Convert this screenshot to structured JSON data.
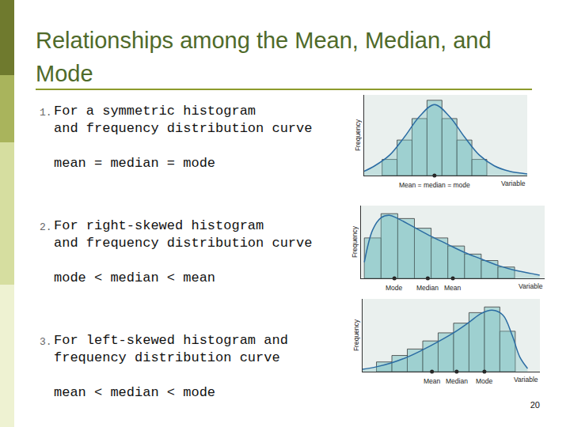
{
  "slide": {
    "title": "Relationships among the Mean, Median, and Mode",
    "items": [
      {
        "number": "1.",
        "text": [
          "For a symmetric histogram",
          "and frequency distribution curve"
        ],
        "relation": "mean = median = mode"
      },
      {
        "number": "2.",
        "text": [
          "For right-skewed histogram",
          "and frequency distribution curve"
        ],
        "relation": "mode < median < mean"
      },
      {
        "number": "3.",
        "text": [
          "For left-skewed histogram and",
          "frequency distribution curve"
        ],
        "relation": "mean < median < mode"
      }
    ],
    "page_number": 20
  },
  "chart_data": [
    {
      "type": "histogram",
      "xlabel": "Variable",
      "ylabel": "Frequency",
      "color": "#7fc4c4",
      "bins": [
        -3.5,
        -2.5,
        -1.5,
        -0.5,
        0.5,
        1.5,
        2.5,
        3.5
      ],
      "counts": [
        1.5,
        3.3,
        5.3,
        7,
        5.3,
        3.3,
        1.5
      ],
      "curve": {
        "x": [
          -4.7,
          -4,
          -3,
          -2,
          -1,
          0,
          1,
          2,
          3,
          4,
          5,
          6.2
        ],
        "y": [
          0.4,
          0.9,
          1.9,
          3.6,
          5.5,
          6.6,
          5.5,
          3.6,
          1.9,
          0.9,
          0.4,
          0.15
        ],
        "color": "#2b6ca3"
      },
      "markers": [
        {
          "label": "Mean = median = mode",
          "x": 0
        }
      ],
      "xlim": [
        -4.7,
        6.2
      ],
      "ylim": [
        0,
        7.5
      ],
      "tick_labels": false
    },
    {
      "type": "histogram",
      "xlabel": "Variable",
      "ylabel": "Frequency",
      "color": "#7fc4c4",
      "bins": [
        0,
        1,
        2,
        3,
        4,
        5,
        6,
        7,
        8,
        9
      ],
      "counts": [
        5,
        8,
        7.4,
        6.2,
        5,
        4,
        3,
        2.2,
        1.4
      ],
      "curve": {
        "x": [
          0,
          0.5,
          1,
          1.5,
          2,
          3,
          4,
          5,
          6,
          7,
          8,
          9,
          10,
          10.5
        ],
        "y": [
          2,
          6,
          7.5,
          7.8,
          7.4,
          6.3,
          5.2,
          4.2,
          3.2,
          2.4,
          1.6,
          1,
          0.6,
          0.4
        ],
        "color": "#2b6ca3"
      },
      "markers": [
        {
          "label": "Mode",
          "x": 1.8
        },
        {
          "label": "Median",
          "x": 3.8
        },
        {
          "label": "Mean",
          "x": 5.3
        }
      ],
      "xlim": [
        -0.2,
        10.8
      ],
      "ylim": [
        0,
        9
      ],
      "tick_labels": false
    },
    {
      "type": "histogram",
      "xlabel": "Variable",
      "ylabel": "Frequency",
      "color": "#7fc4c4",
      "bins": [
        0,
        1,
        2,
        3,
        4,
        5,
        6,
        7,
        8,
        9
      ],
      "counts": [
        1.2,
        2,
        2.8,
        3.8,
        4.8,
        6,
        7.3,
        8,
        5
      ],
      "curve": {
        "x": [
          -0.9,
          0,
          1,
          2,
          3,
          4,
          5,
          6,
          6.8,
          7.5,
          8.2,
          8.8,
          9.3,
          9.8
        ],
        "y": [
          0.3,
          0.6,
          1.1,
          1.8,
          2.7,
          3.7,
          4.8,
          6.1,
          7.2,
          7.6,
          7,
          4.5,
          1.8,
          0.4
        ],
        "color": "#2b6ca3"
      },
      "markers": [
        {
          "label": "Mean",
          "x": 3.6
        },
        {
          "label": "Median",
          "x": 5.2
        },
        {
          "label": "Mode",
          "x": 7
        }
      ],
      "xlim": [
        -0.9,
        10.6
      ],
      "ylim": [
        0,
        9
      ],
      "tick_labels": false
    }
  ]
}
